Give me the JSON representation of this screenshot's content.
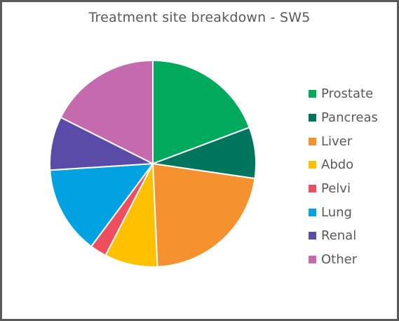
{
  "chart_data": {
    "type": "pie",
    "title": "Treatment site breakdown - SW5",
    "legend_position": "right",
    "categories": [
      "Prostate",
      "Pancreas",
      "Liver",
      "Abdo",
      "Pelvi",
      "Lung",
      "Renal",
      "Other"
    ],
    "values": [
      19.3,
      8.0,
      22.0,
      8.3,
      2.6,
      13.8,
      8.4,
      17.6
    ],
    "colors": [
      "#00A95C",
      "#00755E",
      "#F5922F",
      "#FFC000",
      "#EF4E61",
      "#00A2E1",
      "#5A4BA8",
      "#C56AAE"
    ]
  }
}
